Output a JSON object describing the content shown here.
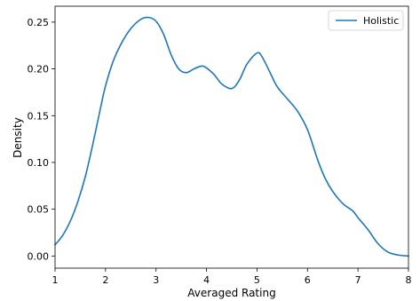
{
  "chart_data": {
    "type": "line",
    "xlabel": "Averaged Rating",
    "ylabel": "Density",
    "xlim": [
      1,
      8
    ],
    "ylim": [
      -0.013,
      0.267
    ],
    "xticks": [
      "1",
      "2",
      "3",
      "4",
      "5",
      "6",
      "7",
      "8"
    ],
    "yticks": [
      "0.00",
      "0.05",
      "0.10",
      "0.15",
      "0.20",
      "0.25"
    ],
    "grid": false,
    "legend_position": "top-right",
    "series": [
      {
        "name": "Holistic",
        "color": "#1f77b4",
        "x": [
          1.0,
          1.15,
          1.3,
          1.45,
          1.6,
          1.75,
          1.9,
          2.0,
          2.15,
          2.3,
          2.5,
          2.7,
          2.85,
          3.0,
          3.15,
          3.3,
          3.45,
          3.6,
          3.75,
          3.9,
          4.0,
          4.15,
          4.3,
          4.5,
          4.65,
          4.8,
          5.0,
          5.1,
          5.25,
          5.4,
          5.6,
          5.8,
          6.0,
          6.2,
          6.35,
          6.5,
          6.7,
          6.9,
          7.0,
          7.2,
          7.4,
          7.6,
          7.8,
          8.0
        ],
        "y": [
          0.012,
          0.022,
          0.037,
          0.058,
          0.085,
          0.12,
          0.158,
          0.182,
          0.208,
          0.226,
          0.243,
          0.253,
          0.255,
          0.251,
          0.237,
          0.215,
          0.2,
          0.196,
          0.2,
          0.203,
          0.201,
          0.194,
          0.184,
          0.179,
          0.188,
          0.205,
          0.217,
          0.213,
          0.197,
          0.181,
          0.168,
          0.155,
          0.135,
          0.103,
          0.083,
          0.069,
          0.056,
          0.048,
          0.041,
          0.028,
          0.013,
          0.004,
          0.001,
          0.0
        ]
      }
    ]
  }
}
